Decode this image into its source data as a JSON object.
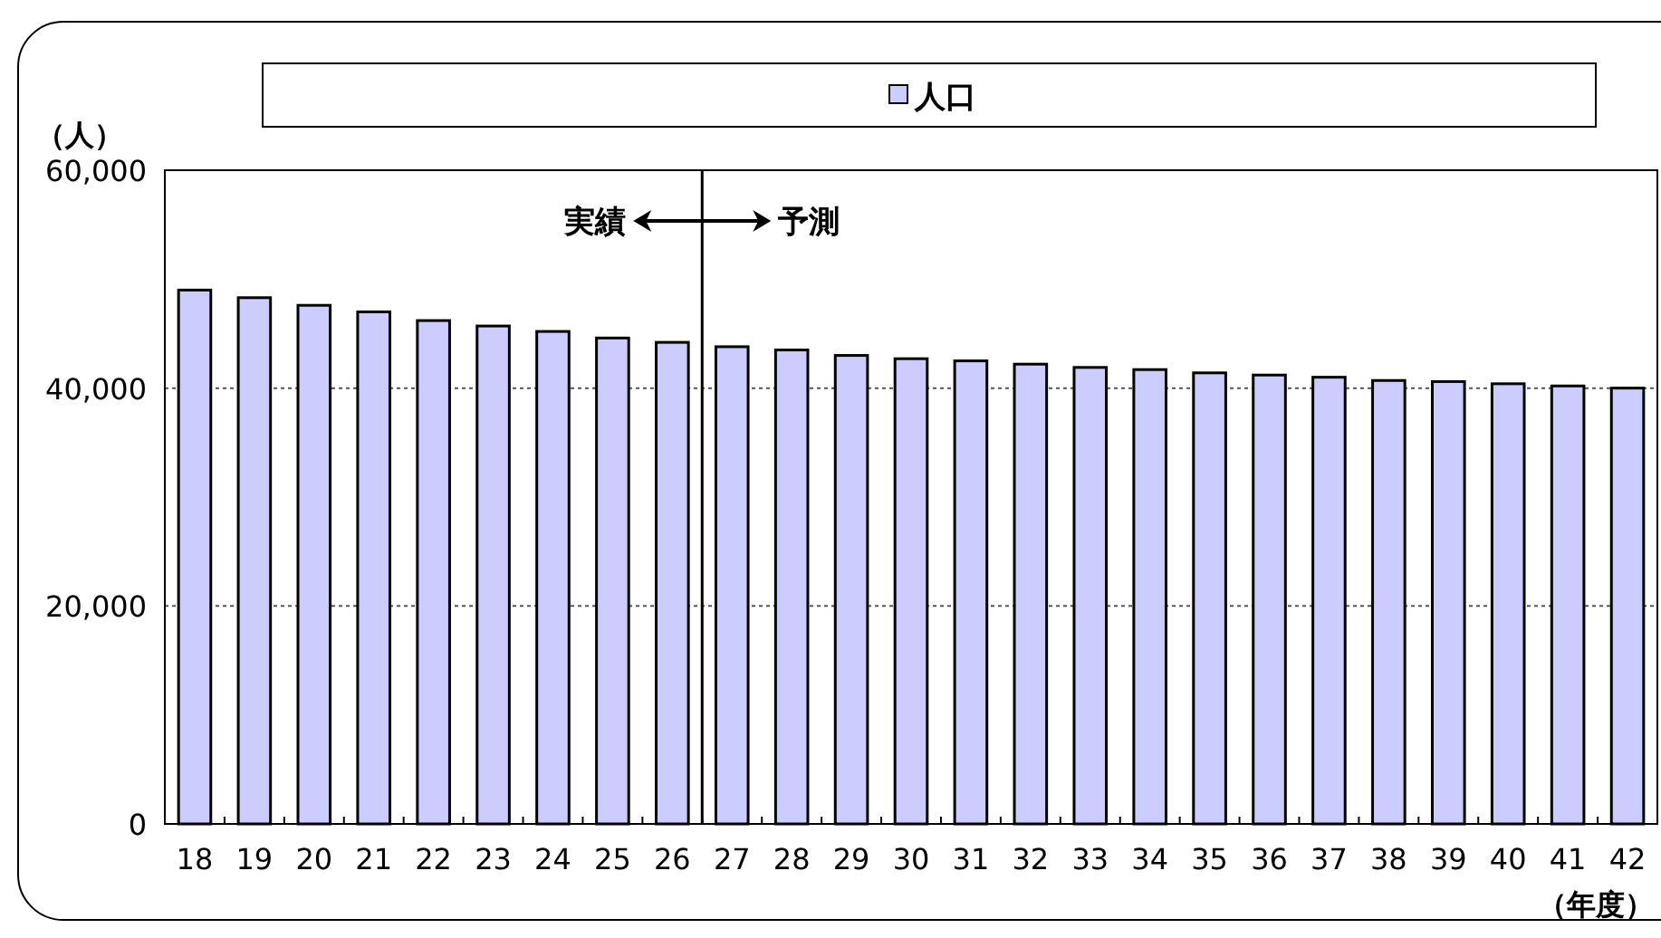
{
  "chart_data": {
    "type": "bar",
    "x": [
      18,
      19,
      20,
      21,
      22,
      23,
      24,
      25,
      26,
      27,
      28,
      29,
      30,
      31,
      32,
      33,
      34,
      35,
      36,
      37,
      38,
      39,
      40,
      41,
      42
    ],
    "series": [
      {
        "name": "人口",
        "color": "#ccccff",
        "values": [
          49000,
          48300,
          47600,
          47000,
          46200,
          45700,
          45200,
          44600,
          44200,
          43800,
          43500,
          43000,
          42700,
          42500,
          42200,
          41900,
          41700,
          41400,
          41200,
          41000,
          40700,
          40600,
          40400,
          40200,
          40000
        ]
      }
    ],
    "xlim": [
      17.5,
      42.5
    ],
    "xticks": [
      18,
      19,
      20,
      21,
      22,
      23,
      24,
      25,
      26,
      27,
      28,
      29,
      30,
      31,
      32,
      33,
      34,
      35,
      36,
      37,
      38,
      39,
      40,
      41,
      42
    ],
    "ylim": [
      0,
      60000
    ],
    "yticks": [
      {
        "value": 0,
        "label": "0"
      },
      {
        "value": 20000,
        "label": "20,000"
      },
      {
        "value": 40000,
        "label": "40,000"
      },
      {
        "value": 60000,
        "label": "60,000"
      }
    ],
    "ylabel": "（人）",
    "xlabel": "（年度）",
    "grid": "y",
    "legend": "top",
    "ref_lines": [
      {
        "axis": "x",
        "value": 26.5,
        "color": "#000000",
        "line_style": "solid"
      }
    ],
    "annotations": [
      "実績",
      "予測"
    ]
  }
}
